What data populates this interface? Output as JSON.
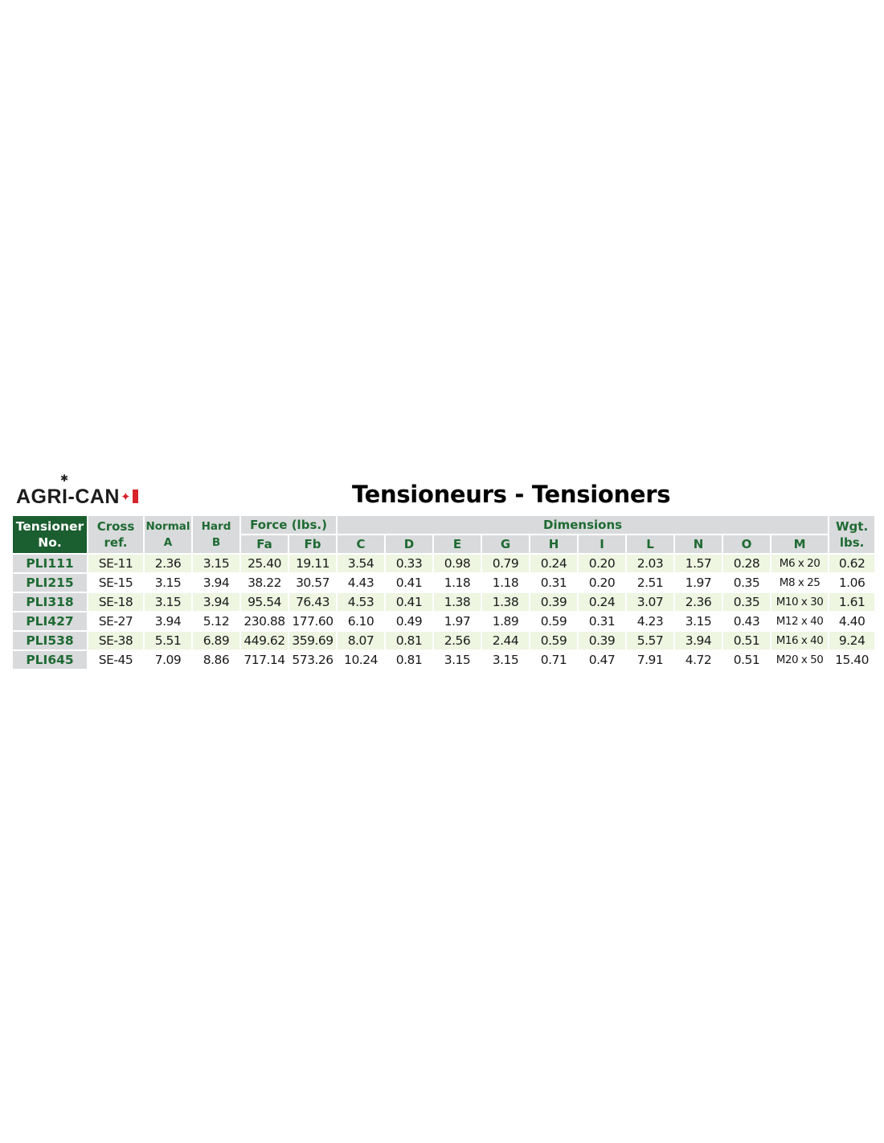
{
  "logo": {
    "text": "AGRI-CAN",
    "flag_color": "#d8232a"
  },
  "title": "Tensioneurs - Tensioners",
  "colors": {
    "header_dark": "#1b5e30",
    "header_text": "#1e6b33",
    "header_bg": "#d9dadc",
    "row_alt": "#eef5e1"
  },
  "table": {
    "headers": {
      "tensioner": "Tensioner",
      "tensioner_sub": "No.",
      "cross": "Cross",
      "cross_sub": "ref.",
      "normal": "Normal",
      "normal_sub": "A",
      "hard": "Hard",
      "hard_sub": "B",
      "force": "Force (lbs.)",
      "dimensions": "Dimensions",
      "weight": "Wgt.",
      "weight_sub": "lbs.",
      "sub": [
        "Fa",
        "Fb",
        "C",
        "D",
        "E",
        "G",
        "H",
        "I",
        "L",
        "N",
        "O",
        "M"
      ]
    },
    "rows": [
      [
        "PLI111",
        "SE-11",
        "2.36",
        "3.15",
        "25.40",
        "19.11",
        "3.54",
        "0.33",
        "0.98",
        "0.79",
        "0.24",
        "0.20",
        "2.03",
        "1.57",
        "0.28",
        "M6 x 20",
        "0.62"
      ],
      [
        "PLI215",
        "SE-15",
        "3.15",
        "3.94",
        "38.22",
        "30.57",
        "4.43",
        "0.41",
        "1.18",
        "1.18",
        "0.31",
        "0.20",
        "2.51",
        "1.97",
        "0.35",
        "M8 x 25",
        "1.06"
      ],
      [
        "PLI318",
        "SE-18",
        "3.15",
        "3.94",
        "95.54",
        "76.43",
        "4.53",
        "0.41",
        "1.38",
        "1.38",
        "0.39",
        "0.24",
        "3.07",
        "2.36",
        "0.35",
        "M10 x 30",
        "1.61"
      ],
      [
        "PLI427",
        "SE-27",
        "3.94",
        "5.12",
        "230.88",
        "177.60",
        "6.10",
        "0.49",
        "1.97",
        "1.89",
        "0.59",
        "0.31",
        "4.23",
        "3.15",
        "0.43",
        "M12 x 40",
        "4.40"
      ],
      [
        "PLI538",
        "SE-38",
        "5.51",
        "6.89",
        "449.62",
        "359.69",
        "8.07",
        "0.81",
        "2.56",
        "2.44",
        "0.59",
        "0.39",
        "5.57",
        "3.94",
        "0.51",
        "M16 x 40",
        "9.24"
      ],
      [
        "PLI645",
        "SE-45",
        "7.09",
        "8.86",
        "717.14",
        "573.26",
        "10.24",
        "0.81",
        "3.15",
        "3.15",
        "0.71",
        "0.47",
        "7.91",
        "4.72",
        "0.51",
        "M20 x 50",
        "15.40"
      ]
    ]
  }
}
